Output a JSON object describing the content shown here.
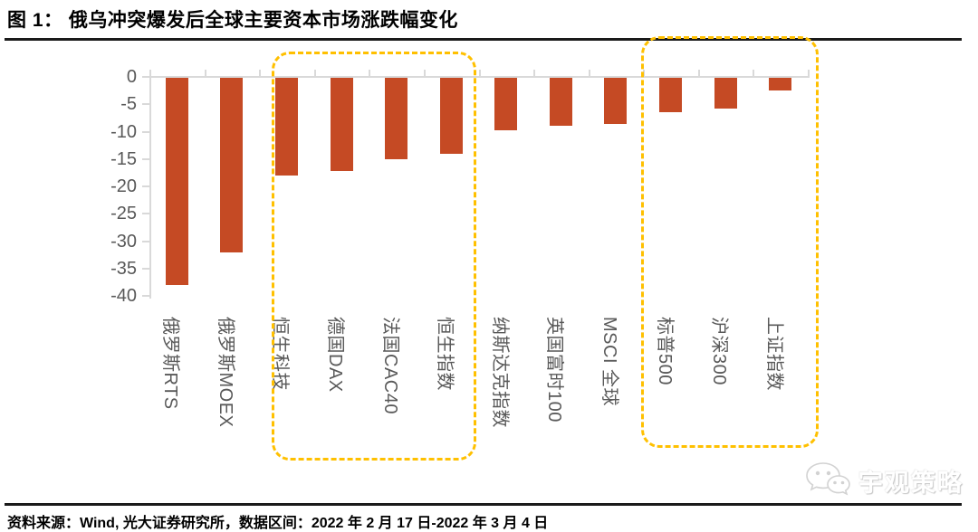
{
  "title": "图 1： 俄乌冲突爆发后全球主要资本市场涨跌幅变化",
  "footer": {
    "source_note": "资料来源：Wind, 光大证券研究所，数据区间：2022 年 2 月 17 日-2022 年 3 月 4 日"
  },
  "watermark": {
    "label": "宇观策略",
    "icon": "wechat-icon"
  },
  "colors": {
    "bar": "#C54A24",
    "highlight_box": "#FFC000",
    "axis_line": "#D9D9D9",
    "axis_label": "#595959",
    "title_text": "#000000"
  },
  "chart_data": {
    "type": "bar",
    "title": "俄乌冲突爆发后全球主要资本市场涨跌幅变化",
    "categories": [
      "俄罗斯RTS",
      "俄罗斯MOEX",
      "恒生科技",
      "德国DAX",
      "法国CAC40",
      "恒生指数",
      "纳斯达克指数",
      "英国富时100",
      "MSCI 全球",
      "标普500",
      "沪深300",
      "上证指数"
    ],
    "values": [
      -37.8,
      -31.9,
      -17.9,
      -17.1,
      -14.8,
      -13.9,
      -9.6,
      -8.8,
      -8.5,
      -6.3,
      -5.6,
      -2.3
    ],
    "xlabel": "",
    "ylabel": "",
    "ylim": [
      -40,
      0
    ],
    "ytick_labels": [
      "0",
      "-5",
      "-10",
      "-15",
      "-20",
      "-25",
      "-30",
      "-35",
      "-40"
    ],
    "grid": false,
    "legend": null,
    "bar_orientation": "vertical-negative",
    "category_label_rotation_deg": 90,
    "highlight_groups": [
      {
        "categories": [
          "恒生科技",
          "德国DAX",
          "法国CAC40",
          "恒生指数"
        ],
        "start_index": 2,
        "end_index": 5
      },
      {
        "categories": [
          "标普500",
          "沪深300",
          "上证指数"
        ],
        "start_index": 9,
        "end_index": 11
      }
    ]
  }
}
